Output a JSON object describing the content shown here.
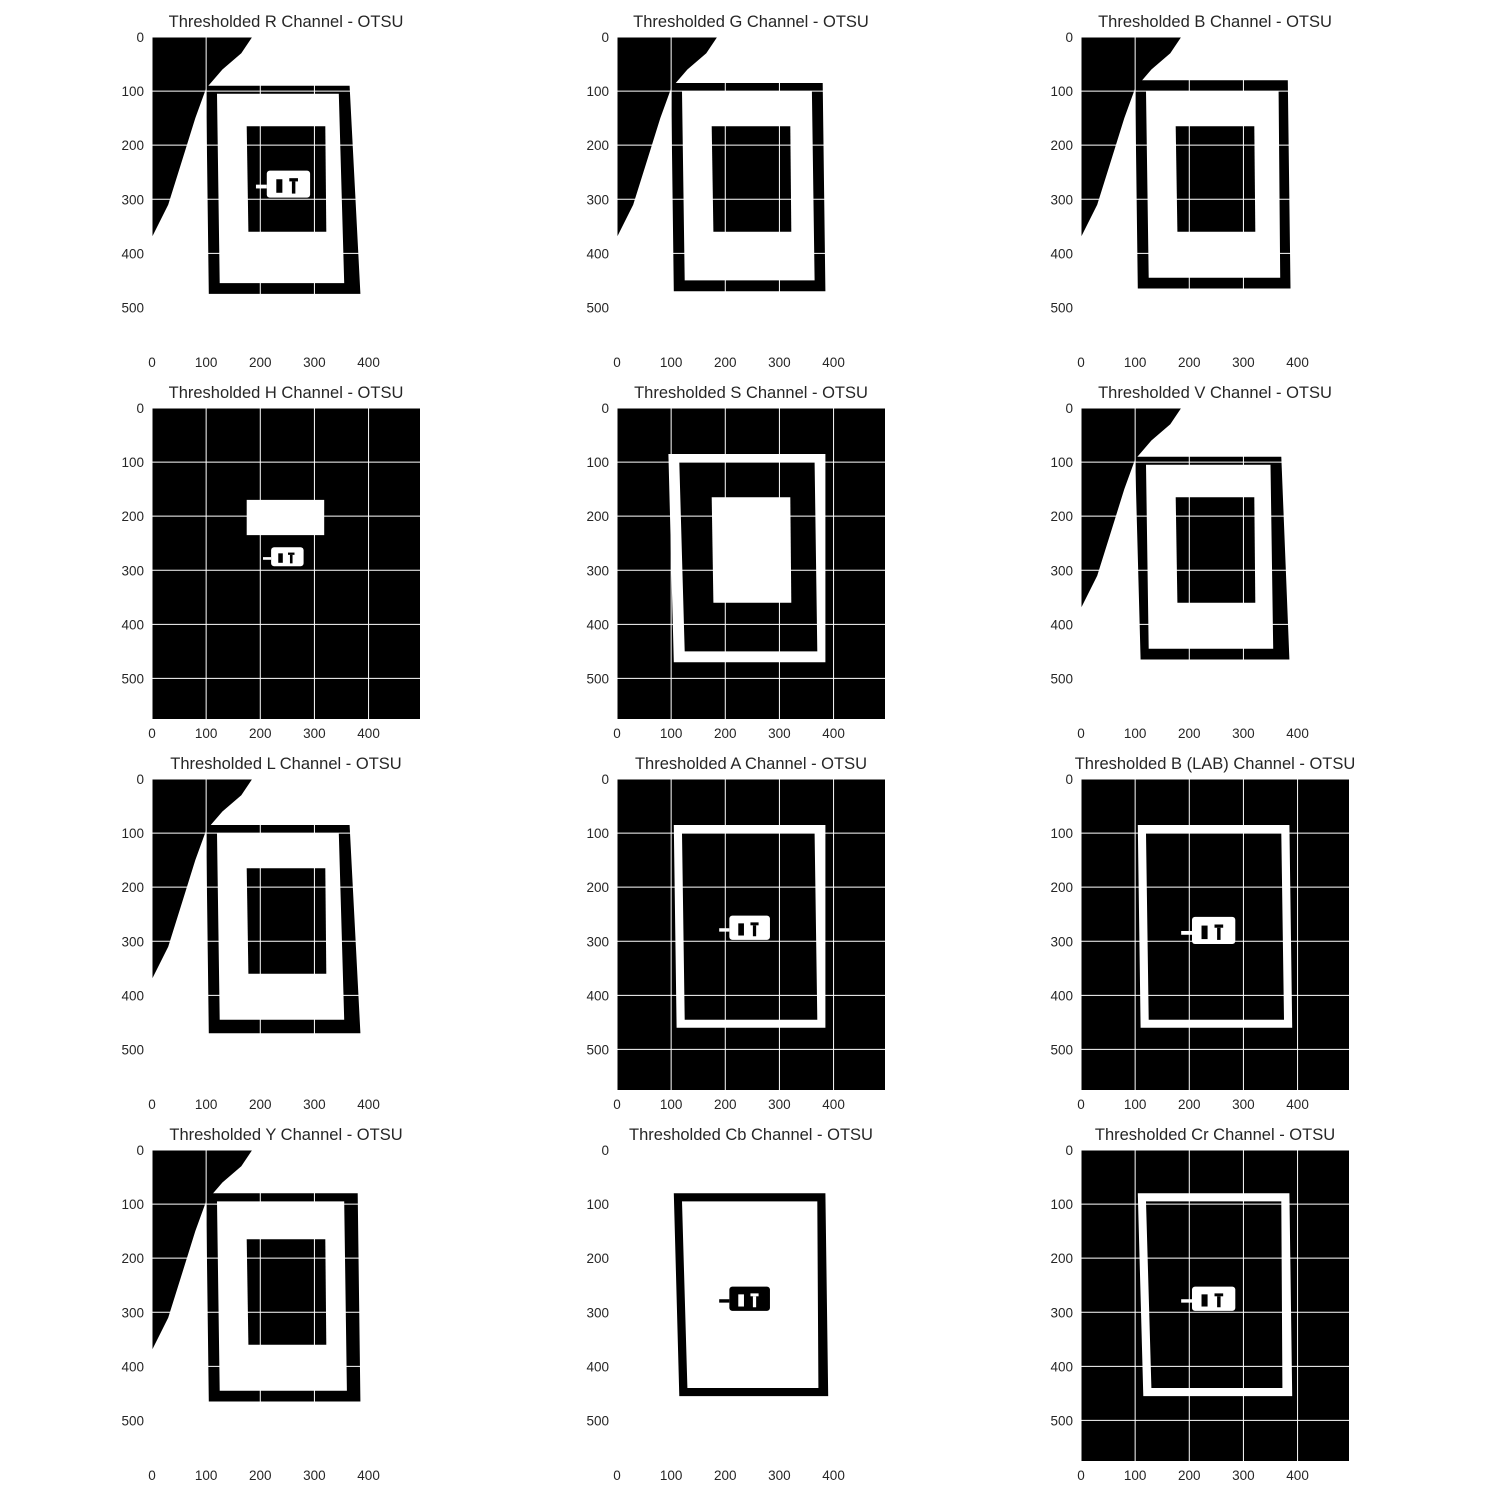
{
  "figure": {
    "background": "#ffffff",
    "grid_color": "#ffffff",
    "text_color": "#262626"
  },
  "chart_data": [
    {
      "type": "heatmap",
      "title": "Thresholded R Channel - OTSU",
      "image_width": 495,
      "image_height": 575,
      "xticks": [
        0,
        100,
        200,
        300,
        400
      ],
      "yticks": [
        0,
        100,
        200,
        300,
        400,
        500
      ],
      "grid": true,
      "foreground_value": 1,
      "background_value": 0,
      "background": "white",
      "regions": [
        {
          "value": 0,
          "shape": "corner_wedge"
        },
        {
          "value": 0,
          "shape": "frame",
          "outer": [
            [
              100,
              90
            ],
            [
              365,
              90
            ],
            [
              385,
              475
            ],
            [
              105,
              475
            ]
          ],
          "inner": [
            [
              120,
              105
            ],
            [
              345,
              105
            ],
            [
              355,
              455
            ],
            [
              125,
              455
            ]
          ]
        },
        {
          "value": 0,
          "shape": "rect",
          "corners": [
            [
              175,
              165
            ],
            [
              320,
              165
            ],
            [
              322,
              360
            ],
            [
              178,
              360
            ]
          ]
        },
        {
          "value": 1,
          "shape": "blob",
          "center": [
            252,
            272
          ],
          "size": [
            80,
            50
          ]
        }
      ]
    },
    {
      "type": "heatmap",
      "title": "Thresholded G Channel - OTSU",
      "image_width": 495,
      "image_height": 575,
      "xticks": [
        0,
        100,
        200,
        300,
        400
      ],
      "yticks": [
        0,
        100,
        200,
        300,
        400,
        500
      ],
      "grid": true,
      "foreground_value": 1,
      "background_value": 0,
      "background": "white",
      "regions": [
        {
          "value": 0,
          "shape": "corner_wedge"
        },
        {
          "value": 0,
          "shape": "frame",
          "outer": [
            [
              100,
              85
            ],
            [
              380,
              85
            ],
            [
              385,
              470
            ],
            [
              105,
              470
            ]
          ],
          "inner": [
            [
              120,
              100
            ],
            [
              360,
              100
            ],
            [
              365,
              450
            ],
            [
              125,
              450
            ]
          ]
        },
        {
          "value": 0,
          "shape": "rect",
          "corners": [
            [
              175,
              165
            ],
            [
              320,
              165
            ],
            [
              322,
              360
            ],
            [
              178,
              360
            ]
          ]
        }
      ]
    },
    {
      "type": "heatmap",
      "title": "Thresholded B Channel - OTSU",
      "image_width": 495,
      "image_height": 575,
      "xticks": [
        0,
        100,
        200,
        300,
        400
      ],
      "yticks": [
        0,
        100,
        200,
        300,
        400,
        500
      ],
      "grid": true,
      "foreground_value": 1,
      "background_value": 0,
      "background": "white",
      "regions": [
        {
          "value": 0,
          "shape": "corner_wedge"
        },
        {
          "value": 0,
          "shape": "frame",
          "outer": [
            [
              100,
              80
            ],
            [
              382,
              80
            ],
            [
              387,
              465
            ],
            [
              105,
              465
            ]
          ],
          "inner": [
            [
              120,
              100
            ],
            [
              365,
              100
            ],
            [
              368,
              445
            ],
            [
              125,
              445
            ]
          ]
        },
        {
          "value": 0,
          "shape": "rect",
          "corners": [
            [
              175,
              165
            ],
            [
              320,
              165
            ],
            [
              322,
              360
            ],
            [
              178,
              360
            ]
          ]
        }
      ]
    },
    {
      "type": "heatmap",
      "title": "Thresholded H Channel - OTSU",
      "image_width": 495,
      "image_height": 575,
      "xticks": [
        0,
        100,
        200,
        300,
        400
      ],
      "yticks": [
        0,
        100,
        200,
        300,
        400,
        500
      ],
      "grid": true,
      "foreground_value": 1,
      "background_value": 0,
      "background": "black",
      "regions": [
        {
          "value": 1,
          "shape": "rect",
          "corners": [
            [
              175,
              170
            ],
            [
              318,
              170
            ],
            [
              318,
              235
            ],
            [
              175,
              235
            ]
          ]
        },
        {
          "value": 1,
          "shape": "blob",
          "center": [
            250,
            275
          ],
          "size": [
            60,
            35
          ]
        }
      ]
    },
    {
      "type": "heatmap",
      "title": "Thresholded S Channel - OTSU",
      "image_width": 495,
      "image_height": 575,
      "xticks": [
        0,
        100,
        200,
        300,
        400
      ],
      "yticks": [
        0,
        100,
        200,
        300,
        400,
        500
      ],
      "grid": true,
      "foreground_value": 1,
      "background_value": 0,
      "background": "black",
      "regions": [
        {
          "value": 1,
          "shape": "frame",
          "outer": [
            [
              95,
              85
            ],
            [
              385,
              85
            ],
            [
              385,
              470
            ],
            [
              105,
              470
            ]
          ],
          "inner": [
            [
              115,
              100
            ],
            [
              365,
              100
            ],
            [
              370,
              450
            ],
            [
              125,
              450
            ]
          ]
        },
        {
          "value": 1,
          "shape": "rect",
          "corners": [
            [
              175,
              165
            ],
            [
              320,
              165
            ],
            [
              322,
              360
            ],
            [
              178,
              360
            ]
          ]
        }
      ]
    },
    {
      "type": "heatmap",
      "title": "Thresholded V Channel - OTSU",
      "image_width": 495,
      "image_height": 575,
      "xticks": [
        0,
        100,
        200,
        300,
        400
      ],
      "yticks": [
        0,
        100,
        200,
        300,
        400,
        500
      ],
      "grid": true,
      "foreground_value": 1,
      "background_value": 0,
      "background": "white",
      "regions": [
        {
          "value": 0,
          "shape": "corner_wedge"
        },
        {
          "value": 0,
          "shape": "frame",
          "outer": [
            [
              100,
              90
            ],
            [
              370,
              90
            ],
            [
              385,
              465
            ],
            [
              110,
              465
            ]
          ],
          "inner": [
            [
              120,
              105
            ],
            [
              350,
              105
            ],
            [
              355,
              445
            ],
            [
              125,
              445
            ]
          ]
        },
        {
          "value": 0,
          "shape": "rect",
          "corners": [
            [
              175,
              165
            ],
            [
              320,
              165
            ],
            [
              322,
              360
            ],
            [
              178,
              360
            ]
          ]
        }
      ]
    },
    {
      "type": "heatmap",
      "title": "Thresholded L Channel - OTSU",
      "image_width": 495,
      "image_height": 575,
      "xticks": [
        0,
        100,
        200,
        300,
        400
      ],
      "yticks": [
        0,
        100,
        200,
        300,
        400,
        500
      ],
      "grid": true,
      "foreground_value": 1,
      "background_value": 0,
      "background": "white",
      "regions": [
        {
          "value": 0,
          "shape": "corner_wedge"
        },
        {
          "value": 0,
          "shape": "frame",
          "outer": [
            [
              100,
              85
            ],
            [
              365,
              85
            ],
            [
              385,
              470
            ],
            [
              105,
              470
            ]
          ],
          "inner": [
            [
              120,
              100
            ],
            [
              345,
              100
            ],
            [
              355,
              445
            ],
            [
              125,
              445
            ]
          ]
        },
        {
          "value": 0,
          "shape": "rect",
          "corners": [
            [
              175,
              165
            ],
            [
              320,
              165
            ],
            [
              322,
              360
            ],
            [
              178,
              360
            ]
          ]
        }
      ]
    },
    {
      "type": "heatmap",
      "title": "Thresholded A Channel - OTSU",
      "image_width": 495,
      "image_height": 575,
      "xticks": [
        0,
        100,
        200,
        300,
        400
      ],
      "yticks": [
        0,
        100,
        200,
        300,
        400,
        500
      ],
      "grid": true,
      "foreground_value": 1,
      "background_value": 0,
      "background": "black",
      "regions": [
        {
          "value": 1,
          "shape": "frame",
          "outer": [
            [
              105,
              85
            ],
            [
              385,
              85
            ],
            [
              385,
              460
            ],
            [
              110,
              460
            ]
          ],
          "inner": [
            [
              120,
              100
            ],
            [
              365,
              100
            ],
            [
              370,
              445
            ],
            [
              125,
              445
            ]
          ]
        },
        {
          "value": 1,
          "shape": "blob",
          "center": [
            245,
            275
          ],
          "size": [
            75,
            45
          ]
        }
      ]
    },
    {
      "type": "heatmap",
      "title": "Thresholded B (LAB) Channel - OTSU",
      "image_width": 495,
      "image_height": 575,
      "xticks": [
        0,
        100,
        200,
        300,
        400
      ],
      "yticks": [
        0,
        100,
        200,
        300,
        400,
        500
      ],
      "grid": true,
      "foreground_value": 1,
      "background_value": 0,
      "background": "black",
      "regions": [
        {
          "value": 1,
          "shape": "frame",
          "outer": [
            [
              105,
              85
            ],
            [
              385,
              85
            ],
            [
              390,
              460
            ],
            [
              110,
              460
            ]
          ],
          "inner": [
            [
              120,
              100
            ],
            [
              370,
              100
            ],
            [
              375,
              445
            ],
            [
              125,
              445
            ]
          ]
        },
        {
          "value": 1,
          "shape": "blob",
          "center": [
            245,
            280
          ],
          "size": [
            80,
            50
          ]
        }
      ]
    },
    {
      "type": "heatmap",
      "title": "Thresholded Y Channel - OTSU",
      "image_width": 495,
      "image_height": 575,
      "xticks": [
        0,
        100,
        200,
        300,
        400
      ],
      "yticks": [
        0,
        100,
        200,
        300,
        400,
        500
      ],
      "grid": true,
      "foreground_value": 1,
      "background_value": 0,
      "background": "white",
      "regions": [
        {
          "value": 0,
          "shape": "corner_wedge"
        },
        {
          "value": 0,
          "shape": "frame",
          "outer": [
            [
              100,
              80
            ],
            [
              380,
              80
            ],
            [
              385,
              465
            ],
            [
              105,
              465
            ]
          ],
          "inner": [
            [
              120,
              95
            ],
            [
              355,
              95
            ],
            [
              360,
              445
            ],
            [
              125,
              445
            ]
          ]
        },
        {
          "value": 0,
          "shape": "rect",
          "corners": [
            [
              175,
              165
            ],
            [
              320,
              165
            ],
            [
              322,
              360
            ],
            [
              178,
              360
            ]
          ]
        }
      ]
    },
    {
      "type": "heatmap",
      "title": "Thresholded Cb Channel - OTSU",
      "image_width": 495,
      "image_height": 575,
      "xticks": [
        0,
        100,
        200,
        300,
        400
      ],
      "yticks": [
        0,
        100,
        200,
        300,
        400,
        500
      ],
      "grid": false,
      "foreground_value": 1,
      "background_value": 0,
      "background": "white",
      "regions": [
        {
          "value": 0,
          "shape": "frame",
          "outer": [
            [
              105,
              80
            ],
            [
              385,
              80
            ],
            [
              390,
              455
            ],
            [
              115,
              455
            ]
          ],
          "inner": [
            [
              120,
              95
            ],
            [
              370,
              95
            ],
            [
              372,
              440
            ],
            [
              130,
              440
            ]
          ]
        },
        {
          "value": 0,
          "shape": "blob",
          "center": [
            245,
            275
          ],
          "size": [
            75,
            45
          ]
        }
      ]
    },
    {
      "type": "heatmap",
      "title": "Thresholded Cr Channel - OTSU",
      "image_width": 495,
      "image_height": 575,
      "xticks": [
        0,
        100,
        200,
        300,
        400
      ],
      "yticks": [
        0,
        100,
        200,
        300,
        400,
        500
      ],
      "grid": true,
      "foreground_value": 1,
      "background_value": 0,
      "background": "black",
      "regions": [
        {
          "value": 1,
          "shape": "frame",
          "outer": [
            [
              105,
              80
            ],
            [
              385,
              80
            ],
            [
              390,
              455
            ],
            [
              115,
              455
            ]
          ],
          "inner": [
            [
              120,
              95
            ],
            [
              370,
              95
            ],
            [
              372,
              440
            ],
            [
              130,
              440
            ]
          ]
        },
        {
          "value": 1,
          "shape": "blob",
          "center": [
            245,
            275
          ],
          "size": [
            80,
            45
          ]
        }
      ]
    }
  ]
}
